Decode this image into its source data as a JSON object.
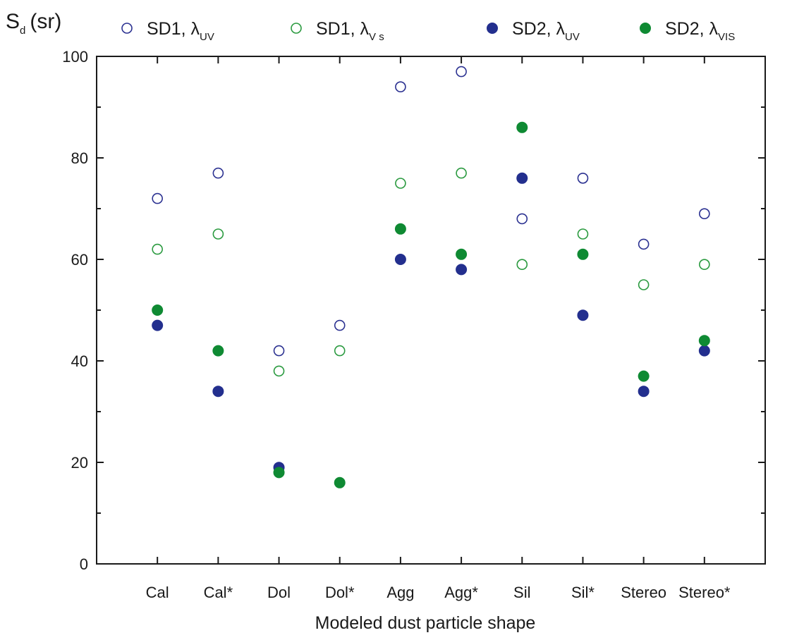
{
  "chart_data": {
    "type": "scatter",
    "title": "",
    "xlabel": "Modeled dust particle shape",
    "ylabel": {
      "main": "S",
      "sub": "d",
      "unit": "(sr)"
    },
    "categories": [
      "Cal",
      "Cal*",
      "Dol",
      "Dol*",
      "Agg",
      "Agg*",
      "Sil",
      "Sil*",
      "Stereo",
      "Stereo*"
    ],
    "ylim": [
      0,
      100
    ],
    "yticks": [
      0,
      20,
      40,
      60,
      80,
      100
    ],
    "grid": false,
    "legend_position": "top",
    "series": [
      {
        "name": "SD1, λUV",
        "label_main": "SD1, λ",
        "label_sub": "UV",
        "marker": "open-circle",
        "color": "#2b3191",
        "values": [
          72,
          77,
          42,
          47,
          94,
          97,
          68,
          76,
          63,
          69
        ]
      },
      {
        "name": "SD1, λVs",
        "label_main": "SD1, λ",
        "label_sub": "V s",
        "marker": "open-circle",
        "color": "#2a9a3f",
        "values": [
          62,
          65,
          38,
          42,
          75,
          77,
          59,
          65,
          55,
          59
        ]
      },
      {
        "name": "SD2, λUV",
        "label_main": "SD2, λ",
        "label_sub": "UV",
        "marker": "filled-circle",
        "color": "#232f8e",
        "values": [
          47,
          34,
          19,
          null,
          60,
          58,
          76,
          49,
          34,
          42
        ]
      },
      {
        "name": "SD2, λVIS",
        "label_main": "SD2, λ",
        "label_sub": "VIS",
        "marker": "filled-circle",
        "color": "#0f8a33",
        "values": [
          50,
          42,
          18,
          16,
          66,
          61,
          86,
          61,
          37,
          44
        ]
      }
    ]
  }
}
